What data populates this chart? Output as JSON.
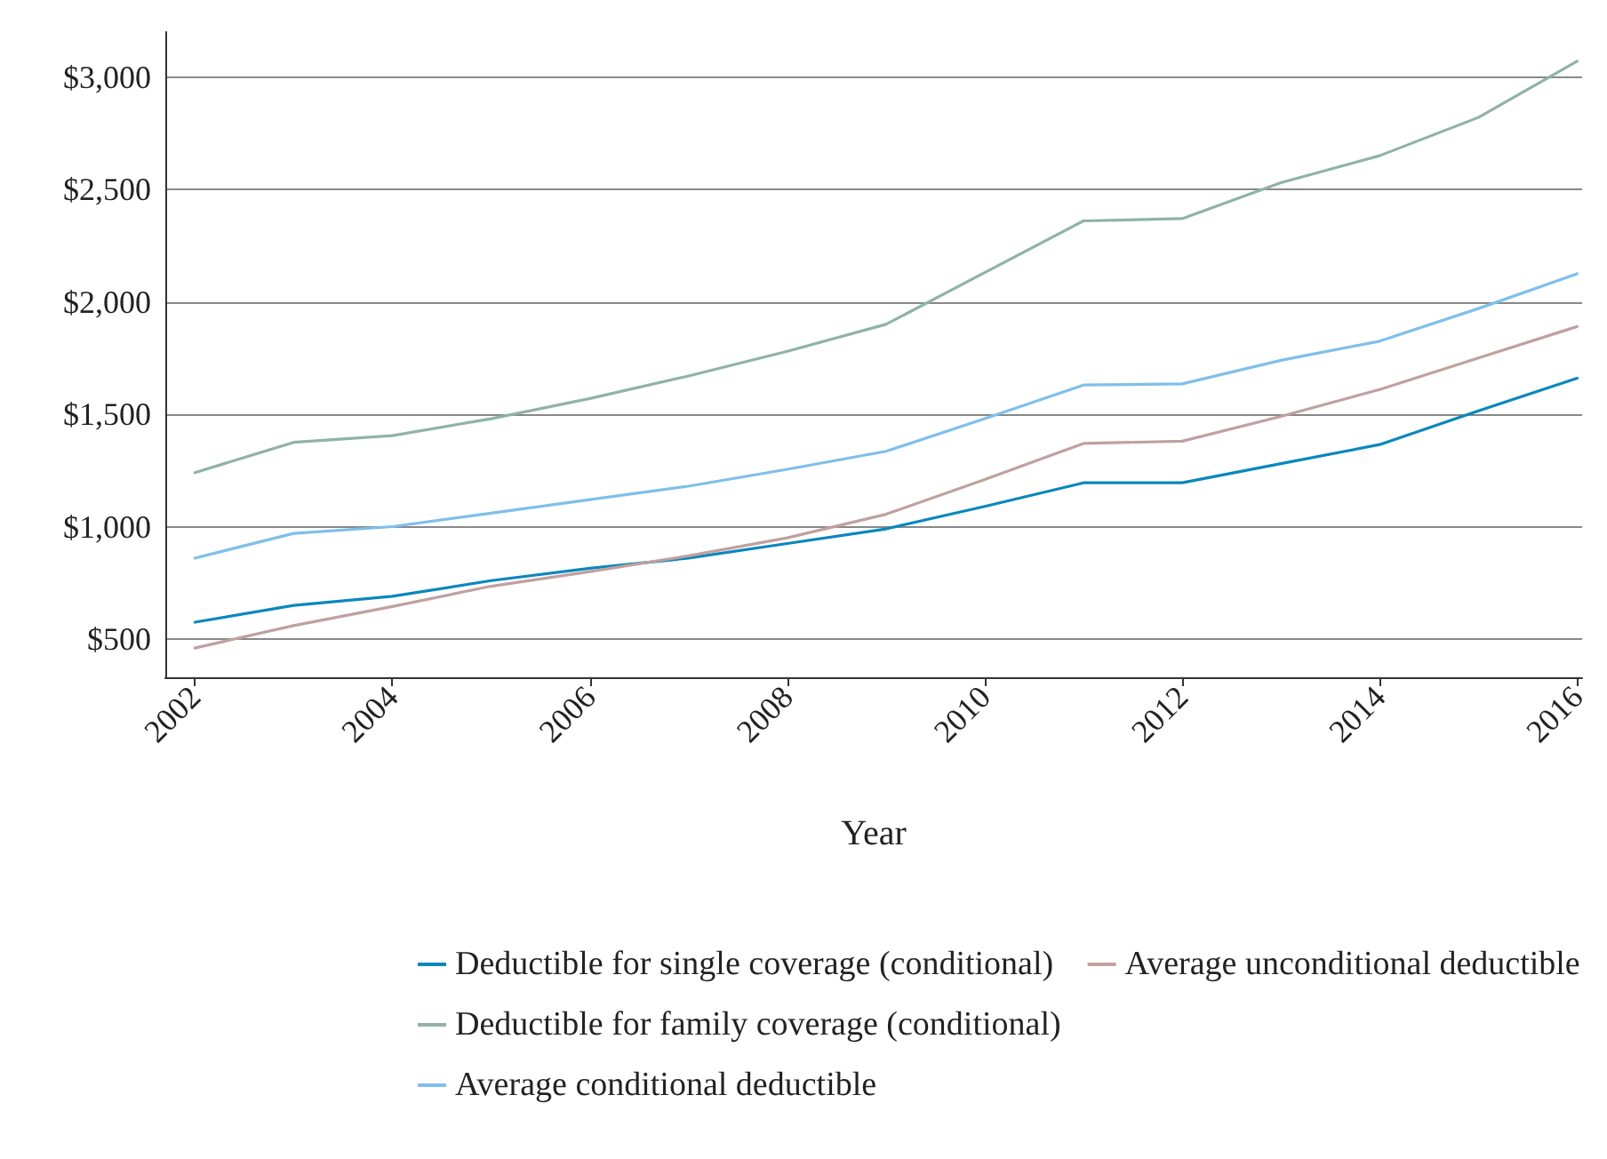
{
  "chart_data": {
    "type": "line",
    "xlabel": "Year",
    "x": [
      2002,
      2003,
      2004,
      2005,
      2006,
      2007,
      2008,
      2009,
      2010,
      2011,
      2012,
      2013,
      2014,
      2015,
      2016
    ],
    "series": [
      {
        "name": "Deductible for single coverage (conditional)",
        "color": "#0a87bd",
        "values": [
          575,
          650,
          690,
          760,
          815,
          860,
          925,
          990,
          1090,
          1195,
          1195,
          1280,
          1365,
          1515,
          1660
        ]
      },
      {
        "name": "Deductible for family coverage (conditional)",
        "color": "#8fb3a5",
        "values": [
          1240,
          1375,
          1405,
          1480,
          1570,
          1670,
          1780,
          1900,
          2130,
          2360,
          2370,
          2530,
          2650,
          2820,
          3070
        ]
      },
      {
        "name": "Average conditional deductible",
        "color": "#7fbfea",
        "values": [
          860,
          970,
          1000,
          1060,
          1120,
          1180,
          1255,
          1335,
          1480,
          1630,
          1635,
          1740,
          1825,
          1970,
          2125
        ]
      },
      {
        "name": "Average unconditional deductible",
        "color": "#c0a0a0",
        "values": [
          460,
          560,
          645,
          735,
          800,
          870,
          950,
          1055,
          1210,
          1370,
          1380,
          1490,
          1610,
          1750,
          1890
        ]
      }
    ],
    "xlim": [
      2001.7,
      2016.05
    ],
    "xticks": [
      2002,
      2004,
      2006,
      2008,
      2010,
      2012,
      2014,
      2016
    ],
    "ylim": [
      330,
      3200
    ],
    "yticks": [
      {
        "value": 500,
        "label": "$500"
      },
      {
        "value": 1000,
        "label": "$1,000"
      },
      {
        "value": 1500,
        "label": "$1,500"
      },
      {
        "value": 2000,
        "label": "$2,000"
      },
      {
        "value": 2500,
        "label": "$2,500"
      },
      {
        "value": 3000,
        "label": "$3,000"
      }
    ],
    "grid": "y",
    "legend": "bottom",
    "marker": "none",
    "line_style": "solid"
  }
}
